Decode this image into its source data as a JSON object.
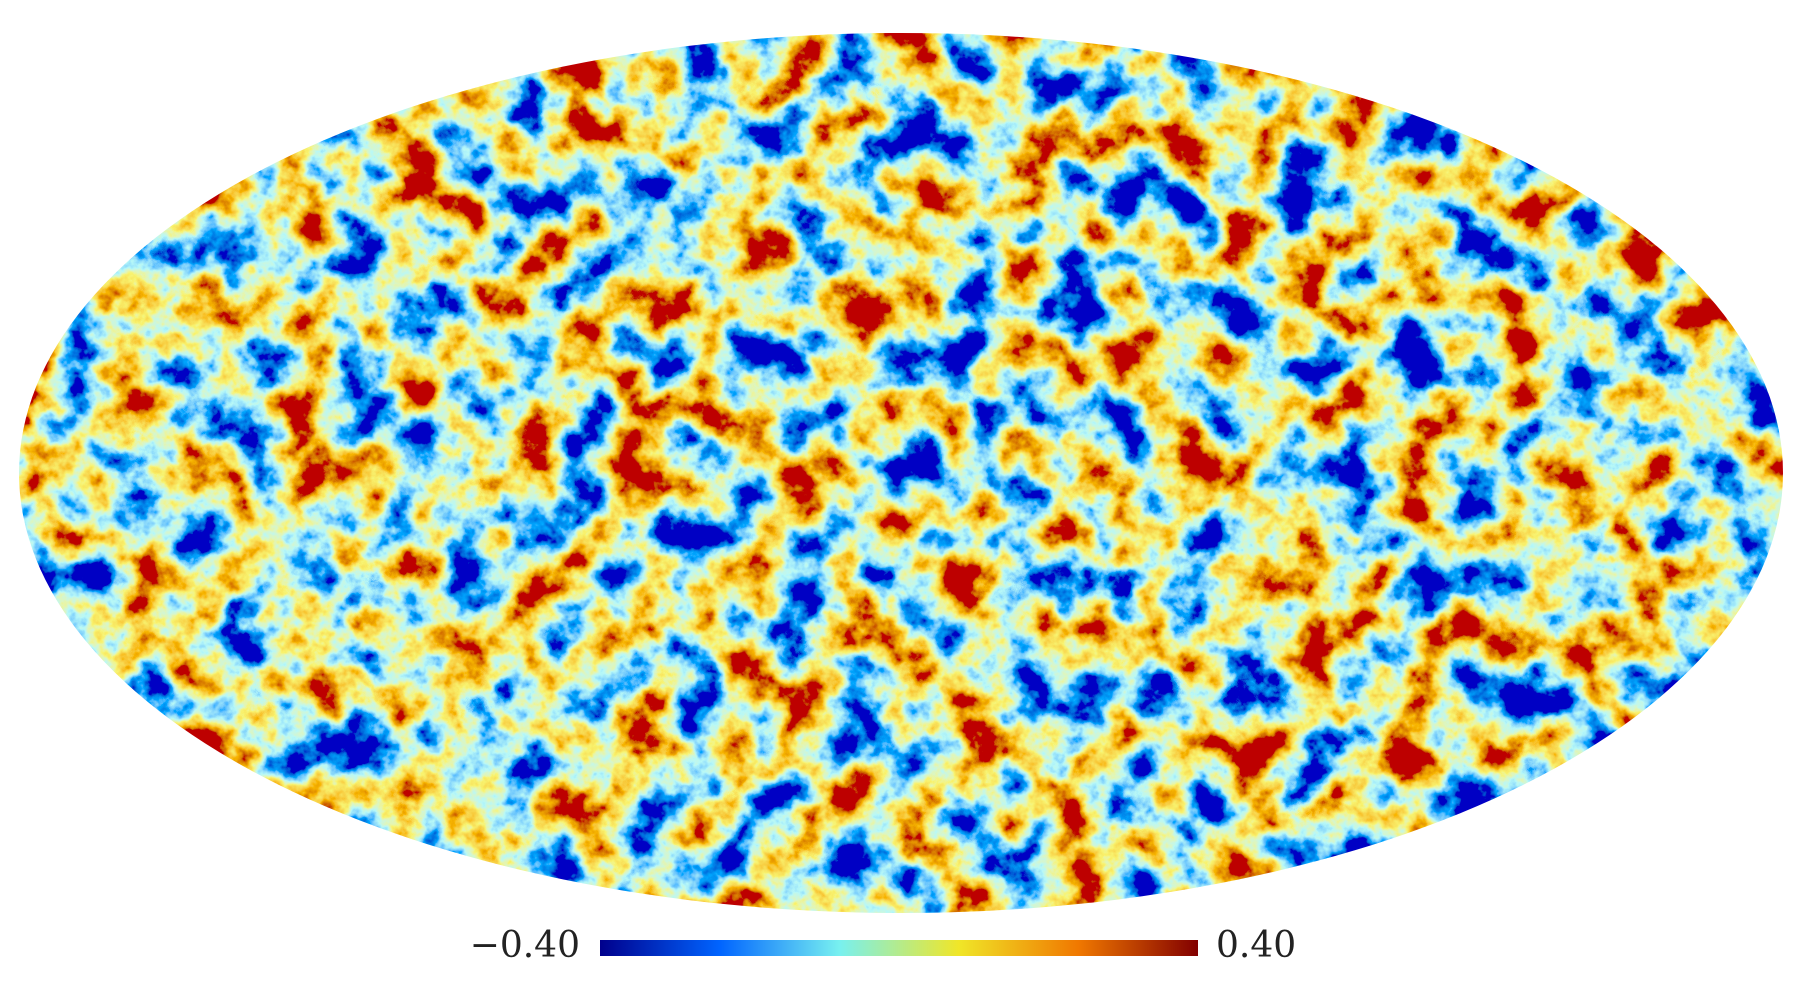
{
  "colorbar": {
    "ticks": [
      {
        "value": -0.4,
        "label": "−0.40"
      },
      {
        "value": 0.4,
        "label": "0.40"
      }
    ],
    "colors": [
      "#00008c",
      "#0064ff",
      "#78f0f0",
      "#f0e628",
      "#f07800",
      "#820000"
    ]
  }
}
